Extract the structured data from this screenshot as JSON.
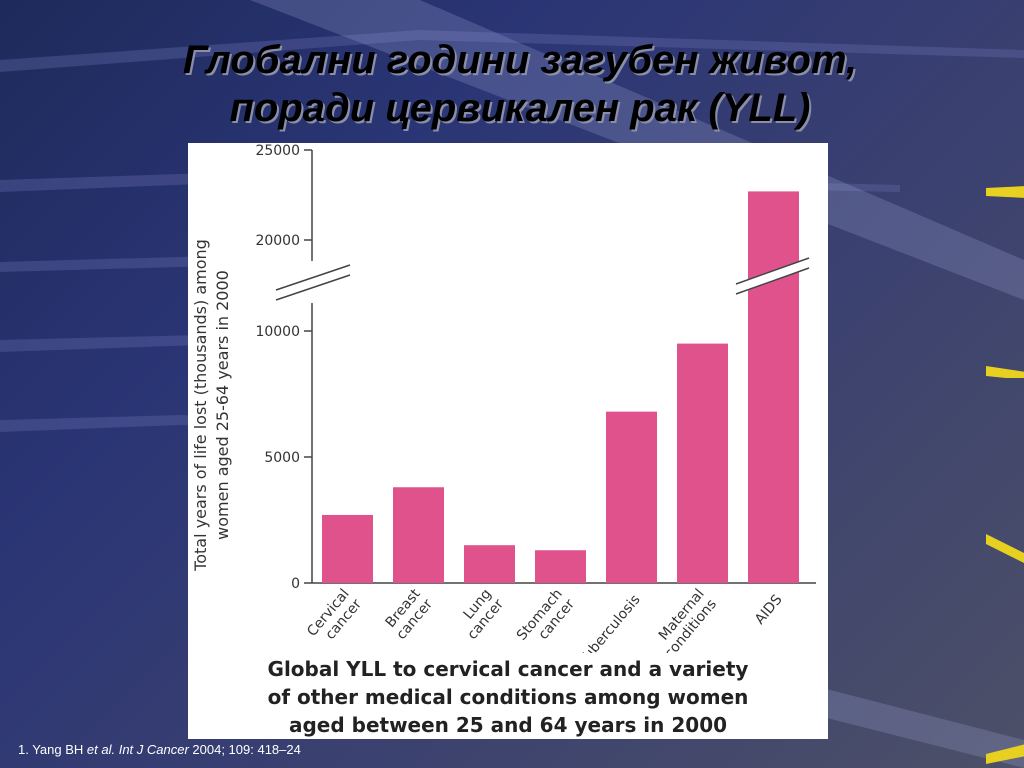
{
  "slide": {
    "title_line1": "Глобални години загубен живот,",
    "title_line2": "поради цервикален рак (YLL)"
  },
  "chart_data": {
    "type": "bar",
    "ylabel_line1": "Total years of life lost (thousands) among",
    "ylabel_line2": "women aged 25-64 years in 2000",
    "yticks": [
      0,
      5000,
      10000,
      20000,
      25000
    ],
    "ylim": [
      0,
      25000
    ],
    "axis_break": "between 10000 and 20000",
    "categories": [
      [
        "Cervical",
        "cancer"
      ],
      [
        "Breast",
        "cancer"
      ],
      [
        "Lung",
        "cancer"
      ],
      [
        "Stomach",
        "cancer"
      ],
      [
        "Tuberculosis"
      ],
      [
        "Maternal",
        "conditions"
      ],
      [
        "AIDS"
      ]
    ],
    "values": [
      2700,
      3800,
      1500,
      1300,
      6800,
      9500,
      22700
    ],
    "bar_color": "#e0528c",
    "caption_line1": "Global YLL to cervical cancer and a variety",
    "caption_line2": "of other medical conditions among women",
    "caption_line3": "aged between 25 and 64 years in 2000"
  },
  "footnote": {
    "prefix": "1. Yang BH ",
    "italic": "et al. Int J Cancer",
    "suffix": " 2004; 109: 418–24"
  },
  "theme": {
    "accent": "#e8d020"
  }
}
